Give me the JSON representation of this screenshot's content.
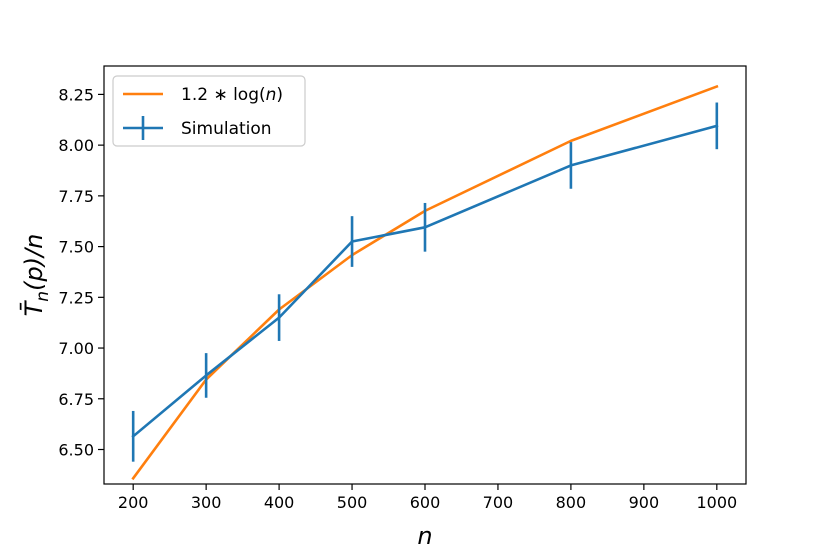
{
  "chart_data": {
    "type": "line",
    "xlabel": "n",
    "ylabel_main": "T̄",
    "ylabel_sub": "n",
    "ylabel_rest": "(p)/n",
    "xlim": [
      160,
      1040
    ],
    "ylim": [
      6.33,
      8.39
    ],
    "xticks": [
      200,
      300,
      400,
      500,
      600,
      700,
      800,
      900,
      1000
    ],
    "yticks": [
      6.5,
      6.75,
      7.0,
      7.25,
      7.5,
      7.75,
      8.0,
      8.25
    ],
    "ytick_labels": [
      "6.50",
      "6.75",
      "7.00",
      "7.25",
      "7.50",
      "7.75",
      "8.00",
      "8.25"
    ],
    "legend_position": "upper-left",
    "series": [
      {
        "name": "1.2 * log(n)",
        "name_parts": [
          "1.2 ∗ log(",
          "n",
          ")"
        ],
        "color": "#ff7f0e",
        "x": [
          200,
          300,
          400,
          500,
          600,
          800,
          1000
        ],
        "y": [
          6.358,
          6.845,
          7.19,
          7.458,
          7.676,
          8.021,
          8.289
        ]
      },
      {
        "name": "Simulation",
        "color": "#1f77b4",
        "x": [
          200,
          300,
          400,
          500,
          600,
          800,
          1000
        ],
        "y": [
          6.565,
          6.865,
          7.15,
          7.525,
          7.595,
          7.9,
          8.095
        ],
        "yerr": [
          0.125,
          0.11,
          0.115,
          0.125,
          0.12,
          0.115,
          0.115
        ]
      }
    ]
  }
}
